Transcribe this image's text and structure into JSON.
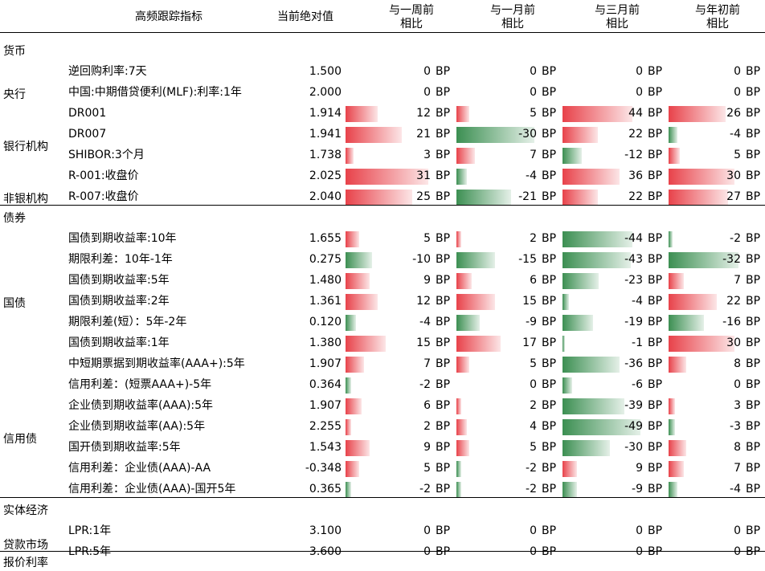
{
  "chart_data": {
    "type": "table",
    "headers": {
      "indicator": "高频跟踪指标",
      "current": "当前绝对值",
      "week": [
        "与一周前",
        "相比"
      ],
      "month": [
        "与一月前",
        "相比"
      ],
      "quarter": [
        "与三月前",
        "相比"
      ],
      "ytd": [
        "与年初前",
        "相比"
      ]
    },
    "unit": "BP",
    "sections": [
      {
        "name": "货币",
        "groups": [
          {
            "name": "央行",
            "rows": [
              {
                "indicator": "逆回购利率:7天",
                "value": "1.500",
                "week": 0,
                "month": 0,
                "quarter": 0,
                "ytd": 0
              },
              {
                "indicator": "中国:中期借贷便利(MLF):利率:1年",
                "value": "2.000",
                "week": 0,
                "month": 0,
                "quarter": 0,
                "ytd": 0
              }
            ]
          },
          {
            "name": "银行机构",
            "rows": [
              {
                "indicator": "DR001",
                "value": "1.914",
                "week": 12,
                "month": 5,
                "quarter": 44,
                "ytd": 26
              },
              {
                "indicator": "DR007",
                "value": "1.941",
                "week": 21,
                "month": -30,
                "quarter": 22,
                "ytd": -4
              },
              {
                "indicator": "SHIBOR:3个月",
                "value": "1.738",
                "week": 3,
                "month": 7,
                "quarter": -12,
                "ytd": 5
              }
            ]
          },
          {
            "name": "非银机构",
            "rows": [
              {
                "indicator": "R-001:收盘价",
                "value": "2.025",
                "week": 31,
                "month": -4,
                "quarter": 36,
                "ytd": 30
              },
              {
                "indicator": "R-007:收盘价",
                "value": "2.040",
                "week": 25,
                "month": -21,
                "quarter": 22,
                "ytd": 27
              }
            ]
          }
        ]
      },
      {
        "name": "债券",
        "groups": [
          {
            "name": "国债",
            "rows": [
              {
                "indicator": "国债到期收益率:10年",
                "value": "1.655",
                "week": 5,
                "month": 2,
                "quarter": -44,
                "ytd": -2
              },
              {
                "indicator": "期限利差：10年-1年",
                "value": "0.275",
                "week": -10,
                "month": -15,
                "quarter": -43,
                "ytd": -32
              },
              {
                "indicator": "国债到期收益率:5年",
                "value": "1.480",
                "week": 9,
                "month": 6,
                "quarter": -23,
                "ytd": 7
              },
              {
                "indicator": "国债到期收益率:2年",
                "value": "1.361",
                "week": 12,
                "month": 15,
                "quarter": -4,
                "ytd": 22
              },
              {
                "indicator": "期限利差(短）：5年-2年",
                "value": "0.120",
                "week": -4,
                "month": -9,
                "quarter": -19,
                "ytd": -16
              },
              {
                "indicator": "国债到期收益率:1年",
                "value": "1.380",
                "week": 15,
                "month": 17,
                "quarter": -1,
                "ytd": 30
              }
            ]
          },
          {
            "name": "信用债",
            "rows": [
              {
                "indicator": "中短期票据到期收益率(AAA+):5年",
                "value": "1.907",
                "week": 7,
                "month": 5,
                "quarter": -36,
                "ytd": 8
              },
              {
                "indicator": "信用利差：(短票AAA+)-5年",
                "value": "0.364",
                "week": -2,
                "month": 0,
                "quarter": -6,
                "ytd": 0
              },
              {
                "indicator": "企业债到期收益率(AAA):5年",
                "value": "1.907",
                "week": 6,
                "month": 2,
                "quarter": -39,
                "ytd": 3
              },
              {
                "indicator": "企业债到期收益率(AA):5年",
                "value": "2.255",
                "week": 2,
                "month": 4,
                "quarter": -49,
                "ytd": -3
              },
              {
                "indicator": "国开债到期收益率:5年",
                "value": "1.543",
                "week": 9,
                "month": 5,
                "quarter": -30,
                "ytd": 8
              },
              {
                "indicator": "信用利差：企业债(AAA)-AA",
                "value": "-0.348",
                "week": 5,
                "month": -2,
                "quarter": 9,
                "ytd": 7
              },
              {
                "indicator": "信用利差：企业债(AAA)-国开5年",
                "value": "0.365",
                "week": -2,
                "month": -2,
                "quarter": -9,
                "ytd": -4
              }
            ]
          }
        ]
      },
      {
        "name": "实体经济",
        "groups": [
          {
            "name": "贷款市场报价利率",
            "name_lines": [
              "贷款市场",
              "报价利率"
            ],
            "rows": [
              {
                "indicator": "LPR:1年",
                "value": "3.100",
                "week": 0,
                "month": 0,
                "quarter": 0,
                "ytd": 0
              },
              {
                "indicator": "LPR:5年",
                "value": "3.600",
                "week": 0,
                "month": 0,
                "quarter": 0,
                "ytd": 0
              }
            ]
          }
        ]
      }
    ],
    "colors": {
      "positive": "#e8424a",
      "negative": "#3c8f52"
    }
  }
}
